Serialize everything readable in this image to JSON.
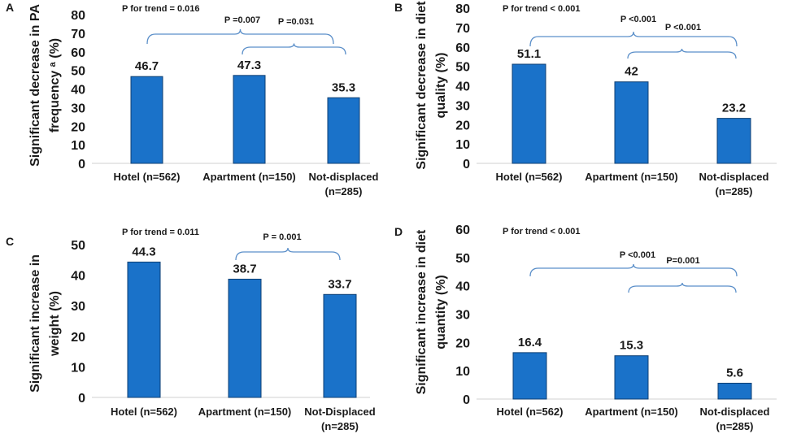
{
  "colors": {
    "bar": "#1a72c9",
    "bar_edge": "#0d3f73",
    "bracket": "#5b8fc9",
    "text": "#1a1a1a",
    "axis": "#d0d0d0"
  },
  "chart_data": [
    {
      "panel": "A",
      "type": "bar",
      "ylabel_lines": [
        "Significant decrease in PA",
        "frequency ᵃ (%)"
      ],
      "ylim": [
        0,
        80
      ],
      "yticks": [
        0,
        10,
        20,
        30,
        40,
        50,
        60,
        70,
        80
      ],
      "categories": [
        [
          "Hotel (n=562)"
        ],
        [
          "Apartment (n=150)"
        ],
        [
          "Not-displaced",
          "(n=285)"
        ]
      ],
      "values": [
        46.7,
        47.3,
        35.3
      ],
      "value_labels": [
        "46.7",
        "47.3",
        "35.3"
      ],
      "trend_label": "P for trend = 0.016",
      "brackets": [
        {
          "from": 0,
          "to": 2,
          "label": "P =0.007"
        },
        {
          "from": 1,
          "to": 2,
          "label": "P =0.031"
        }
      ]
    },
    {
      "panel": "B",
      "type": "bar",
      "ylabel_lines": [
        "Significant decrease in diet",
        "quality (%)"
      ],
      "ylim": [
        0,
        80
      ],
      "yticks": [
        0,
        10,
        20,
        30,
        40,
        50,
        60,
        70,
        80
      ],
      "categories": [
        [
          "Hotel (n=562)"
        ],
        [
          "Apartment (n=150)"
        ],
        [
          "Not-displaced",
          "(n=285)"
        ]
      ],
      "values": [
        51.1,
        42,
        23.2
      ],
      "value_labels": [
        "51.1",
        "42",
        "23.2"
      ],
      "trend_label": "P for trend < 0.001",
      "brackets": [
        {
          "from": 0,
          "to": 2,
          "label": "P <0.001"
        },
        {
          "from": 1,
          "to": 2,
          "label": "P <0.001"
        }
      ]
    },
    {
      "panel": "C",
      "type": "bar",
      "ylabel_lines": [
        "Significant increase in",
        "weight (%)"
      ],
      "ylim": [
        0,
        50
      ],
      "yticks": [
        0,
        10,
        20,
        30,
        40,
        50
      ],
      "categories": [
        [
          "Hotel (n=562)"
        ],
        [
          "Apartment (n=150)"
        ],
        [
          "Not-Displaced",
          "(n=285)"
        ]
      ],
      "values": [
        44.3,
        38.7,
        33.7
      ],
      "value_labels": [
        "44.3",
        "38.7",
        "33.7"
      ],
      "trend_label": "P for trend = 0.011",
      "brackets": [
        {
          "from": 1,
          "to": 2,
          "label": "P = 0.001"
        }
      ]
    },
    {
      "panel": "D",
      "type": "bar",
      "ylabel_lines": [
        "Significant increase in diet",
        "quantity (%)"
      ],
      "ylim": [
        0,
        60
      ],
      "yticks": [
        0,
        10,
        20,
        30,
        40,
        50,
        60
      ],
      "categories": [
        [
          "Hotel (n=562)"
        ],
        [
          "Apartment (n=150)"
        ],
        [
          "Not-displaced",
          "(n=285)"
        ]
      ],
      "values": [
        16.4,
        15.3,
        5.6
      ],
      "value_labels": [
        "16.4",
        "15.3",
        "5.6"
      ],
      "trend_label": "P for trend < 0.001",
      "brackets": [
        {
          "from": 0,
          "to": 2,
          "label": "P <0.001"
        },
        {
          "from": 1,
          "to": 2,
          "label": "P=0.001"
        }
      ]
    }
  ]
}
